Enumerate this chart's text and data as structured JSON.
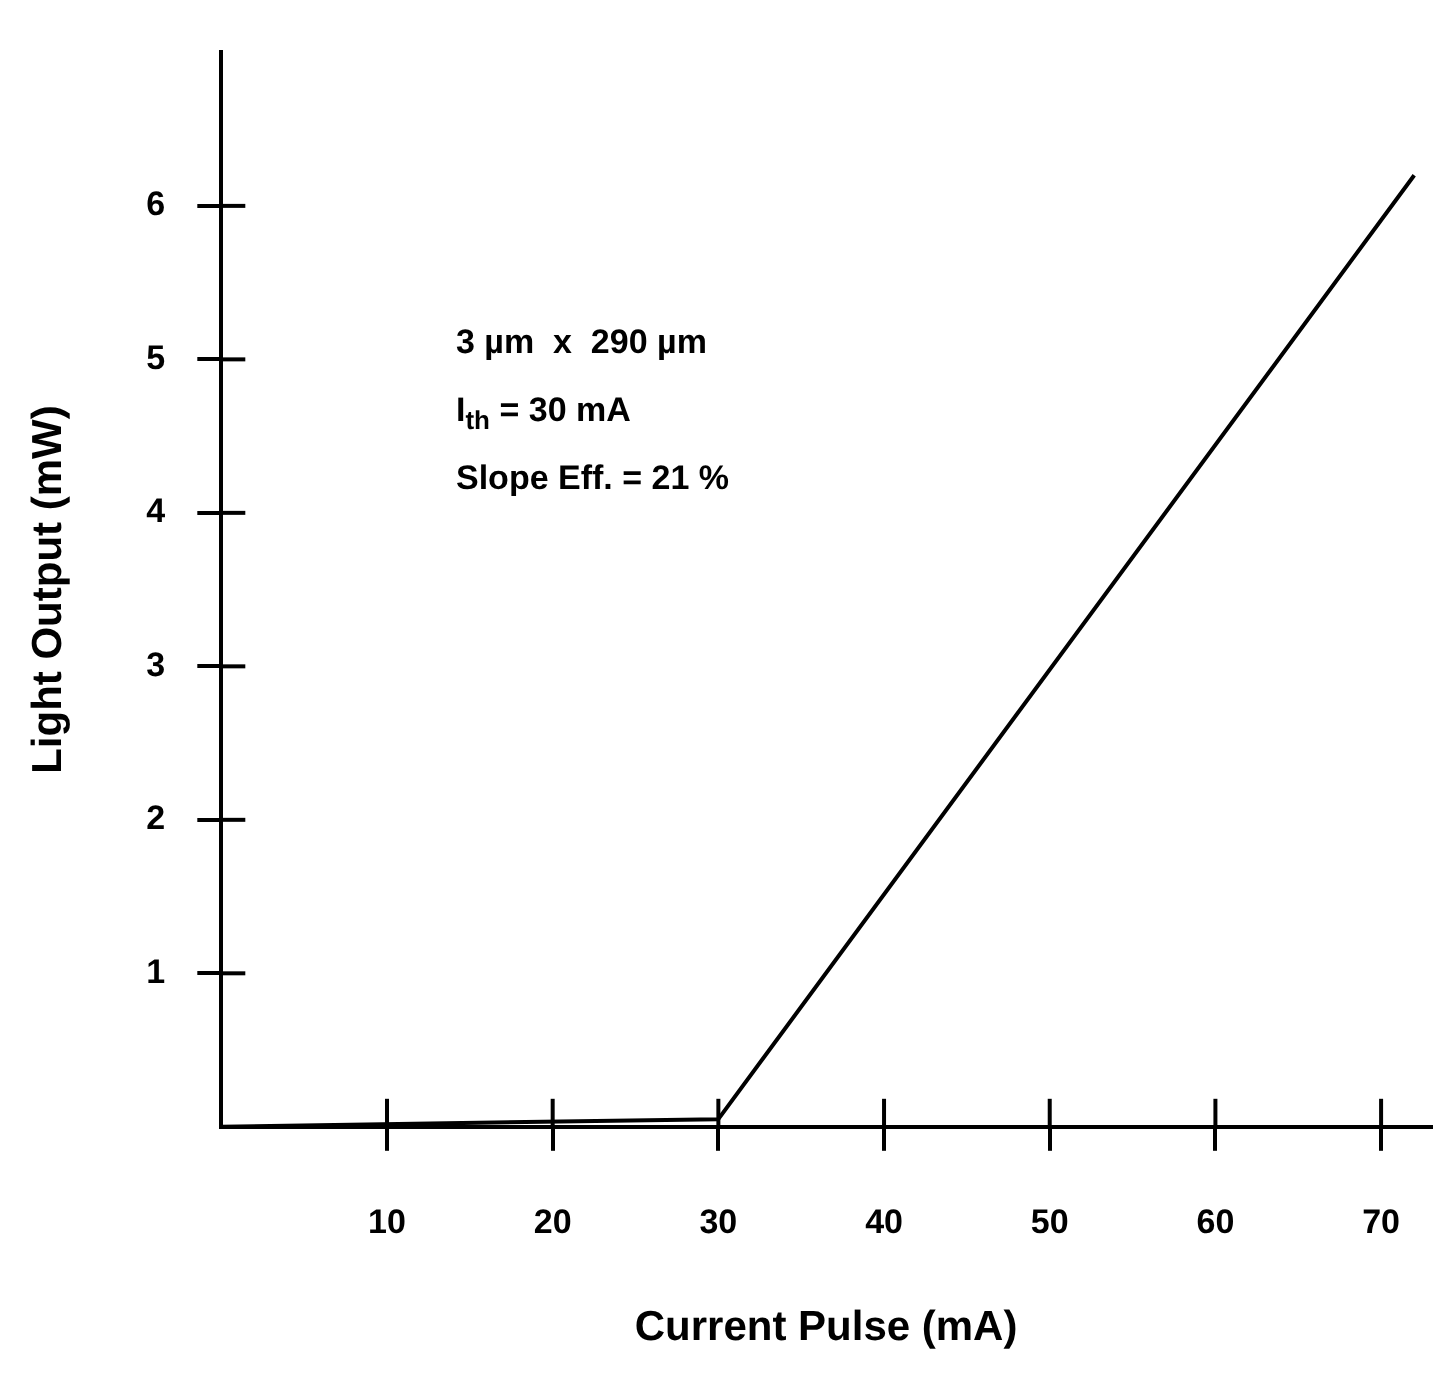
{
  "chart_data": {
    "type": "line",
    "xlabel": "Current Pulse (mA)",
    "ylabel": "Light Output (mW)",
    "x": [
      0,
      30,
      72
    ],
    "series": [
      {
        "color": "#000000",
        "values": [
          0,
          0.05,
          6.2
        ]
      }
    ],
    "xlim": [
      0,
      73
    ],
    "ylim": [
      0,
      7
    ],
    "xticks": [
      10,
      20,
      30,
      40,
      50,
      60,
      70
    ],
    "yticks": [
      1,
      2,
      3,
      4,
      5,
      6
    ],
    "grid": false,
    "legend": false,
    "marker": "none",
    "line_style": "solid",
    "annotations": [
      "3 µm  x  290 µm",
      "I$_{th}$ = 30 mA",
      "Slope Eff. = 21 %"
    ]
  }
}
